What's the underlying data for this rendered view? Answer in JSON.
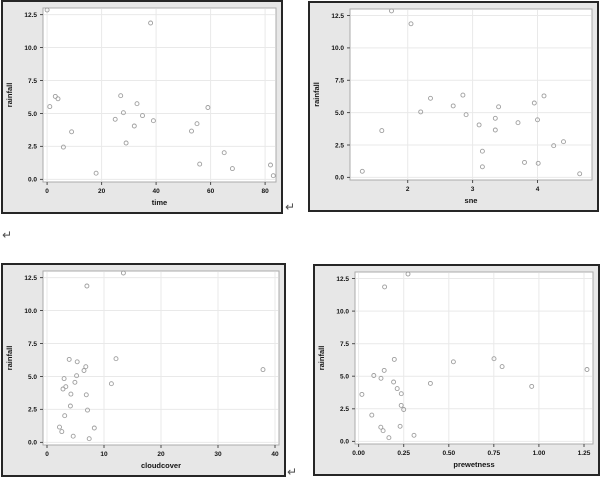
{
  "page": {
    "background": "#ffffff",
    "return_mark": "↵"
  },
  "style": {
    "panel_bg": "#e7e7e7",
    "panel_border": "#262626",
    "plot_bg": "#ffffff",
    "plot_border": "#ababab",
    "grid": "#e9e9e9",
    "tick": "#4d4d4d",
    "text": "#141414",
    "marker": "#9e9e9e"
  },
  "chart_data": [
    {
      "type": "scatter",
      "title": "",
      "xlabel": "time",
      "ylabel": "rainfall",
      "xlim": [
        -1.5,
        84
      ],
      "ylim": [
        -0.2,
        13.0
      ],
      "xticks": [
        0,
        20,
        40,
        60,
        80
      ],
      "xtick_labels": [
        "0",
        "20",
        "40",
        "60",
        "80"
      ],
      "yticks": [
        0,
        2.5,
        5,
        7.5,
        10,
        12.5
      ],
      "ytick_labels": [
        "0.0",
        "2.5",
        "5.0",
        "7.5",
        "10.0",
        "12.5"
      ],
      "grid": true,
      "legend": "none",
      "x": [
        0,
        1,
        3,
        4,
        6,
        9,
        18,
        25,
        27,
        28,
        29,
        32,
        33,
        35,
        38,
        39,
        53,
        55,
        56,
        59,
        65,
        68,
        82,
        83
      ],
      "y": [
        12.85,
        5.52,
        6.29,
        6.11,
        2.45,
        3.61,
        0.47,
        4.56,
        6.35,
        5.06,
        2.76,
        4.05,
        5.74,
        4.84,
        11.86,
        4.45,
        3.66,
        4.22,
        1.16,
        5.45,
        2.02,
        0.82,
        1.09,
        0.28
      ]
    },
    {
      "type": "scatter",
      "title": "",
      "xlabel": "sne",
      "ylabel": "rainfall",
      "xlim": [
        1.11,
        4.84
      ],
      "ylim": [
        -0.2,
        13.0
      ],
      "xticks": [
        2,
        3,
        4
      ],
      "xtick_labels": [
        "2",
        "3",
        "4"
      ],
      "yticks": [
        0,
        2.5,
        5,
        7.5,
        10,
        12.5
      ],
      "ytick_labels": [
        "0.0",
        "2.5",
        "5.0",
        "7.5",
        "10.0",
        "12.5"
      ],
      "grid": true,
      "legend": "none",
      "x": [
        1.75,
        2.7,
        4.1,
        2.35,
        4.25,
        1.6,
        1.3,
        3.35,
        2.85,
        2.2,
        4.4,
        3.1,
        3.95,
        2.9,
        2.05,
        4.0,
        3.35,
        3.7,
        3.8,
        3.4,
        3.15,
        3.15,
        4.01,
        4.65
      ],
      "y": [
        12.85,
        5.52,
        6.29,
        6.11,
        2.45,
        3.61,
        0.47,
        4.56,
        6.35,
        5.06,
        2.76,
        4.05,
        5.74,
        4.84,
        11.86,
        4.45,
        3.66,
        4.22,
        1.16,
        5.45,
        2.02,
        0.82,
        1.09,
        0.28
      ]
    },
    {
      "type": "scatter",
      "title": "",
      "xlabel": "cloudcover",
      "ylabel": "rainfall",
      "xlim": [
        -0.7,
        40.7
      ],
      "ylim": [
        -0.2,
        13.0
      ],
      "xticks": [
        0,
        10,
        20,
        30,
        40
      ],
      "xtick_labels": [
        "0",
        "10",
        "20",
        "30",
        "40"
      ],
      "yticks": [
        0,
        2.5,
        5,
        7.5,
        10,
        12.5
      ],
      "ytick_labels": [
        "0.0",
        "2.5",
        "5.0",
        "7.5",
        "10.0",
        "12.5"
      ],
      "grid": true,
      "legend": "none",
      "x": [
        13.4,
        37.9,
        3.9,
        5.3,
        7.1,
        6.9,
        4.6,
        4.9,
        12.1,
        5.2,
        4.1,
        2.8,
        6.8,
        3.0,
        7.0,
        11.3,
        4.2,
        3.3,
        2.2,
        6.5,
        3.1,
        2.6,
        8.3,
        7.4
      ],
      "y": [
        12.85,
        5.52,
        6.29,
        6.11,
        2.45,
        3.61,
        0.47,
        4.56,
        6.35,
        5.06,
        2.76,
        4.05,
        5.74,
        4.84,
        11.86,
        4.45,
        3.66,
        4.22,
        1.16,
        5.45,
        2.02,
        0.82,
        1.09,
        0.28
      ]
    },
    {
      "type": "scatter",
      "title": "",
      "xlabel": "prewetness",
      "ylabel": "rainfall",
      "xlim": [
        -0.02,
        1.3
      ],
      "ylim": [
        -0.2,
        13.0
      ],
      "xticks": [
        0,
        0.25,
        0.5,
        0.75,
        1.0,
        1.25
      ],
      "xtick_labels": [
        "0.00",
        "0.25",
        "0.50",
        "0.75",
        "1.00",
        "1.25"
      ],
      "yticks": [
        0,
        2.5,
        5,
        7.5,
        10,
        12.5
      ],
      "ytick_labels": [
        "0.0",
        "2.5",
        "5.0",
        "7.5",
        "10.0",
        "12.5"
      ],
      "grid": true,
      "legend": "none",
      "x": [
        0.274,
        1.267,
        0.198,
        0.526,
        0.25,
        0.018,
        0.307,
        0.194,
        0.751,
        0.084,
        0.236,
        0.214,
        0.796,
        0.124,
        0.144,
        0.398,
        0.237,
        0.96,
        0.23,
        0.142,
        0.073,
        0.136,
        0.123,
        0.168
      ],
      "y": [
        12.85,
        5.52,
        6.29,
        6.11,
        2.45,
        3.61,
        0.47,
        4.56,
        6.35,
        5.06,
        2.76,
        4.05,
        5.74,
        4.84,
        11.86,
        4.45,
        3.66,
        4.22,
        1.16,
        5.45,
        2.02,
        0.82,
        1.09,
        0.28
      ]
    }
  ]
}
